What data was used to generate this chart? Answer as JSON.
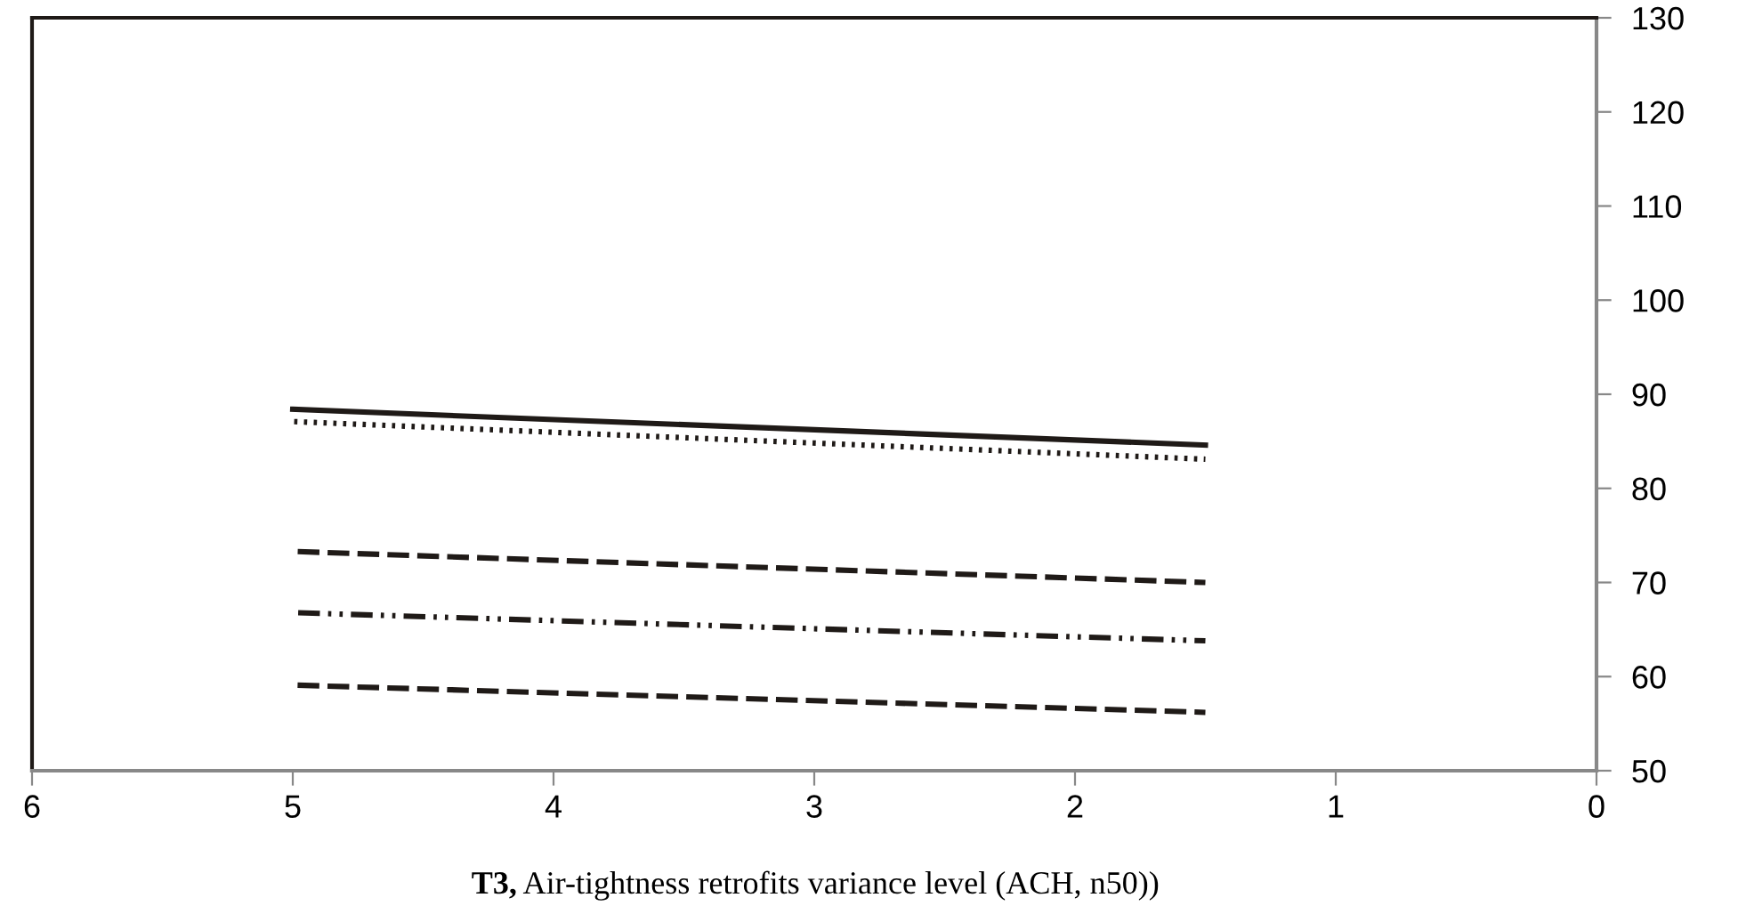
{
  "chart_data": {
    "type": "line",
    "xlabel": "T3, Air-tightness retrofits variance level (ACH, n50))",
    "xlim": [
      6,
      0
    ],
    "xticks": [
      6,
      5,
      4,
      3,
      2,
      1,
      0
    ],
    "ylim": [
      50,
      130
    ],
    "yticks": [
      50,
      60,
      70,
      80,
      90,
      100,
      110,
      120,
      130
    ],
    "grid": false,
    "marker": "none",
    "x": [
      5,
      1.5
    ],
    "series": [
      {
        "color": "#1f1a17",
        "values": [
          88.4,
          84.6
        ],
        "line_style": "solid"
      },
      {
        "color": "#1f1a17",
        "values": [
          87.1,
          83.1
        ],
        "line_style": "dotted"
      },
      {
        "color": "#1f1a17",
        "values": [
          73.3,
          70.0
        ],
        "line_style": "dashed"
      },
      {
        "color": "#1f1a17",
        "values": [
          66.8,
          63.8
        ],
        "line_style": "dashdot"
      },
      {
        "color": "#1f1a17",
        "values": [
          59.1,
          56.2
        ],
        "line_style": "dashed"
      }
    ]
  }
}
